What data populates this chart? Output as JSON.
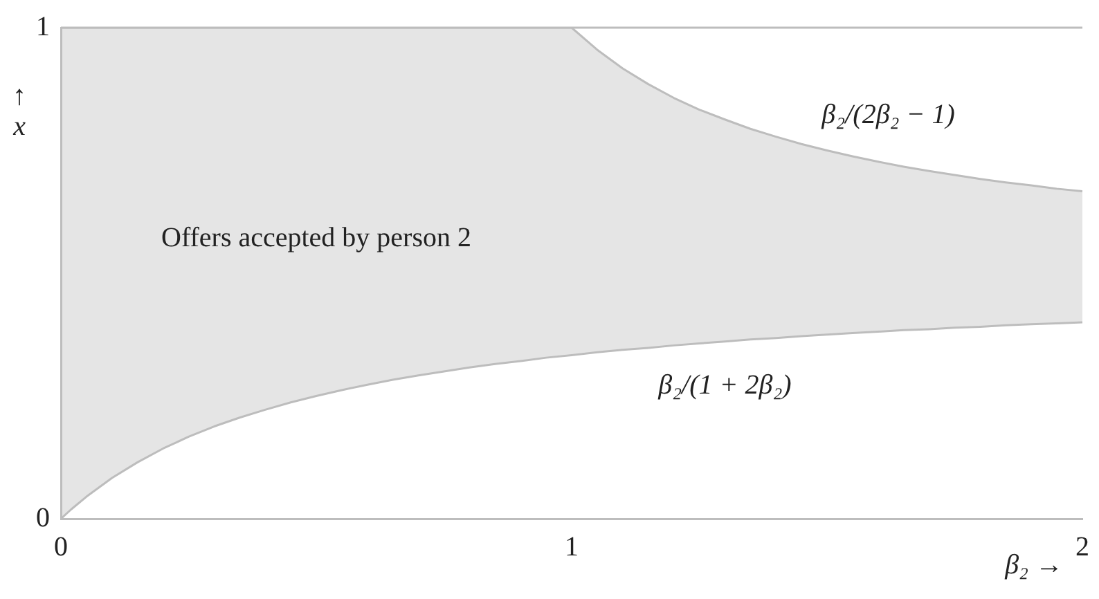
{
  "chart_data": {
    "type": "line",
    "xlabel": "β₂ →",
    "ylabel": "↑ x",
    "x": [
      0,
      0.02,
      0.05,
      0.1,
      0.15,
      0.2,
      0.25,
      0.3,
      0.35,
      0.4,
      0.45,
      0.5,
      0.55,
      0.6,
      0.65,
      0.7,
      0.75,
      0.8,
      0.85,
      0.9,
      0.95,
      1,
      1.05,
      1.1,
      1.15,
      1.2,
      1.25,
      1.3,
      1.35,
      1.4,
      1.45,
      1.5,
      1.55,
      1.6,
      1.65,
      1.7,
      1.75,
      1.8,
      1.85,
      1.9,
      1.95,
      2
    ],
    "series": [
      {
        "type": "area",
        "color": "#bdbdbd",
        "values": [
          1,
          1,
          1,
          1,
          1,
          1,
          1,
          1,
          1,
          1,
          1,
          1,
          1,
          1,
          1,
          1,
          1,
          1,
          1,
          1,
          1,
          1,
          0.955,
          0.917,
          0.885,
          0.857,
          0.833,
          0.813,
          0.794,
          0.778,
          0.763,
          0.75,
          0.738,
          0.727,
          0.717,
          0.708,
          0.7,
          0.692,
          0.685,
          0.679,
          0.672,
          0.667
        ]
      },
      {
        "color": "#bdbdbd",
        "values": [
          0,
          0.019,
          0.045,
          0.083,
          0.115,
          0.143,
          0.167,
          0.188,
          0.206,
          0.222,
          0.237,
          0.25,
          0.262,
          0.273,
          0.283,
          0.292,
          0.3,
          0.308,
          0.315,
          0.321,
          0.328,
          0.333,
          0.339,
          0.344,
          0.348,
          0.353,
          0.357,
          0.361,
          0.365,
          0.368,
          0.372,
          0.375,
          0.378,
          0.381,
          0.384,
          0.386,
          0.389,
          0.391,
          0.394,
          0.396,
          0.398,
          0.4
        ]
      }
    ],
    "xlim": [
      0,
      2
    ],
    "xticks": [
      0,
      1,
      2
    ],
    "ylim": [
      0,
      1
    ],
    "yticks": [
      0,
      1
    ],
    "annotations": [
      "Offers accepted by person 2",
      "β₂/(2β₂ − 1)",
      "β₂/(1 + 2β₂)"
    ]
  }
}
